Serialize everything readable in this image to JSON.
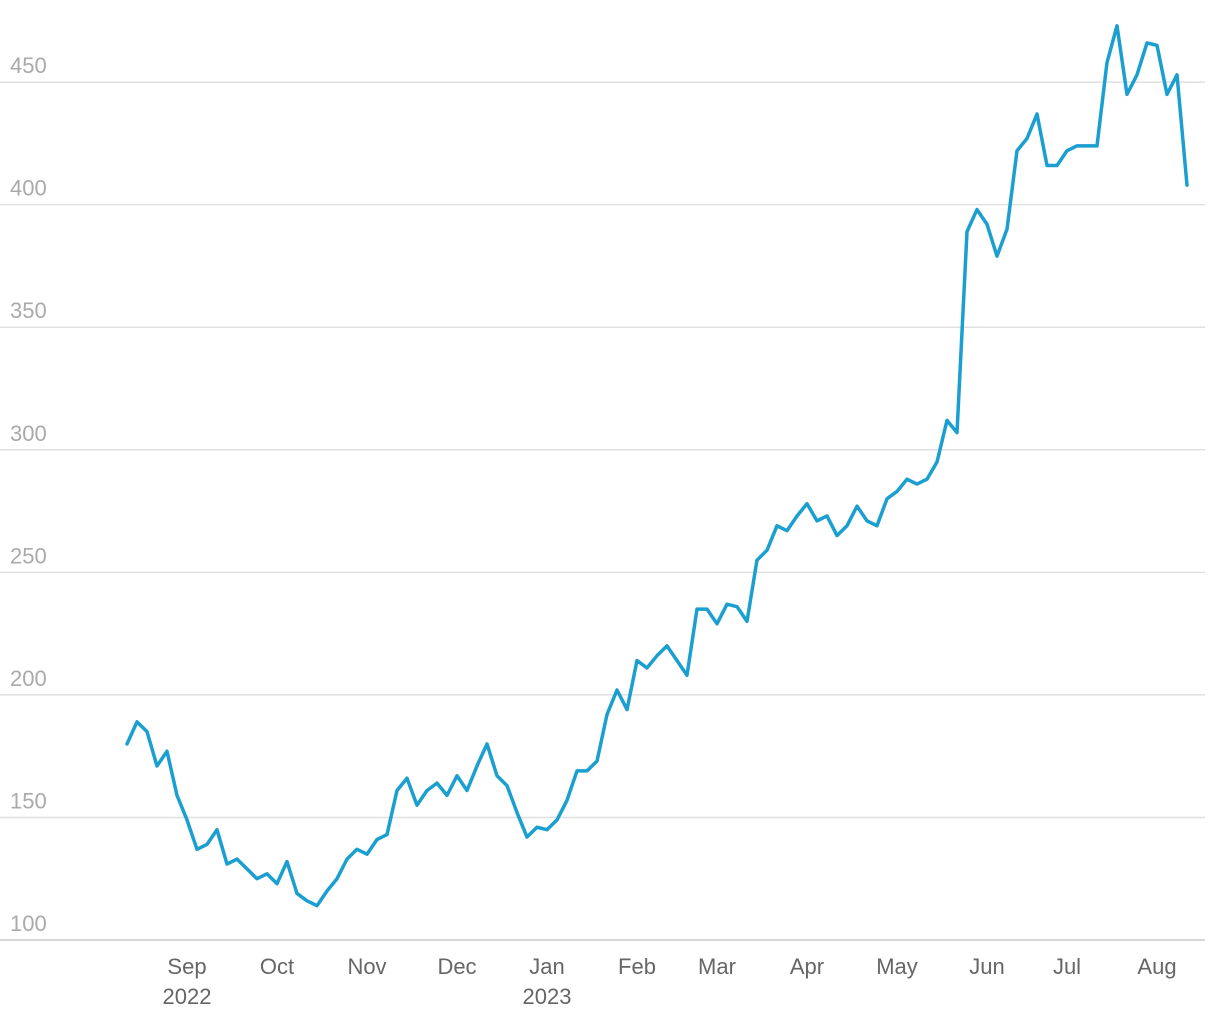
{
  "chart_data": {
    "type": "line",
    "categories": [
      null,
      null,
      null,
      null,
      null,
      null,
      "Sep 2022",
      null,
      null,
      null,
      null,
      null,
      null,
      null,
      null,
      "Oct",
      null,
      null,
      null,
      null,
      null,
      null,
      null,
      null,
      "Nov",
      null,
      null,
      null,
      null,
      null,
      null,
      null,
      null,
      "Dec",
      null,
      null,
      null,
      null,
      null,
      null,
      null,
      null,
      "Jan 2023",
      null,
      null,
      null,
      null,
      null,
      null,
      null,
      null,
      "Feb",
      null,
      null,
      null,
      null,
      null,
      null,
      null,
      "Mar",
      null,
      null,
      null,
      null,
      null,
      null,
      null,
      null,
      "Apr",
      null,
      null,
      null,
      null,
      null,
      null,
      null,
      null,
      "May",
      null,
      null,
      null,
      null,
      null,
      null,
      null,
      null,
      "Jun",
      null,
      null,
      null,
      null,
      null,
      null,
      null,
      "Jul",
      null,
      null,
      null,
      null,
      null,
      null,
      null,
      null,
      "Aug",
      null,
      null,
      null
    ],
    "series": [
      {
        "color": "#1a9fd0",
        "values": [
          180,
          189,
          185,
          171,
          177,
          159,
          149,
          137,
          139,
          145,
          131,
          133,
          129,
          125,
          127,
          123,
          132,
          119,
          116,
          114,
          120,
          125,
          133,
          137,
          135,
          141,
          143,
          161,
          166,
          155,
          161,
          164,
          159,
          167,
          161,
          171,
          180,
          167,
          163,
          152,
          142,
          146,
          145,
          149,
          157,
          169,
          169,
          173,
          192,
          202,
          194,
          214,
          211,
          216,
          220,
          214,
          208,
          235,
          235,
          229,
          237,
          236,
          230,
          255,
          259,
          269,
          267,
          273,
          278,
          271,
          273,
          265,
          269,
          277,
          271,
          269,
          280,
          283,
          288,
          286,
          288,
          295,
          312,
          307,
          389,
          398,
          392,
          379,
          390,
          422,
          427,
          437,
          416,
          416,
          422,
          424,
          424,
          424,
          458,
          473,
          445,
          453,
          466,
          465,
          445,
          453,
          408
        ]
      }
    ],
    "ylim": [
      100,
      480
    ],
    "yticks": [
      100,
      150,
      200,
      250,
      300,
      350,
      400,
      450
    ],
    "grid": true
  }
}
